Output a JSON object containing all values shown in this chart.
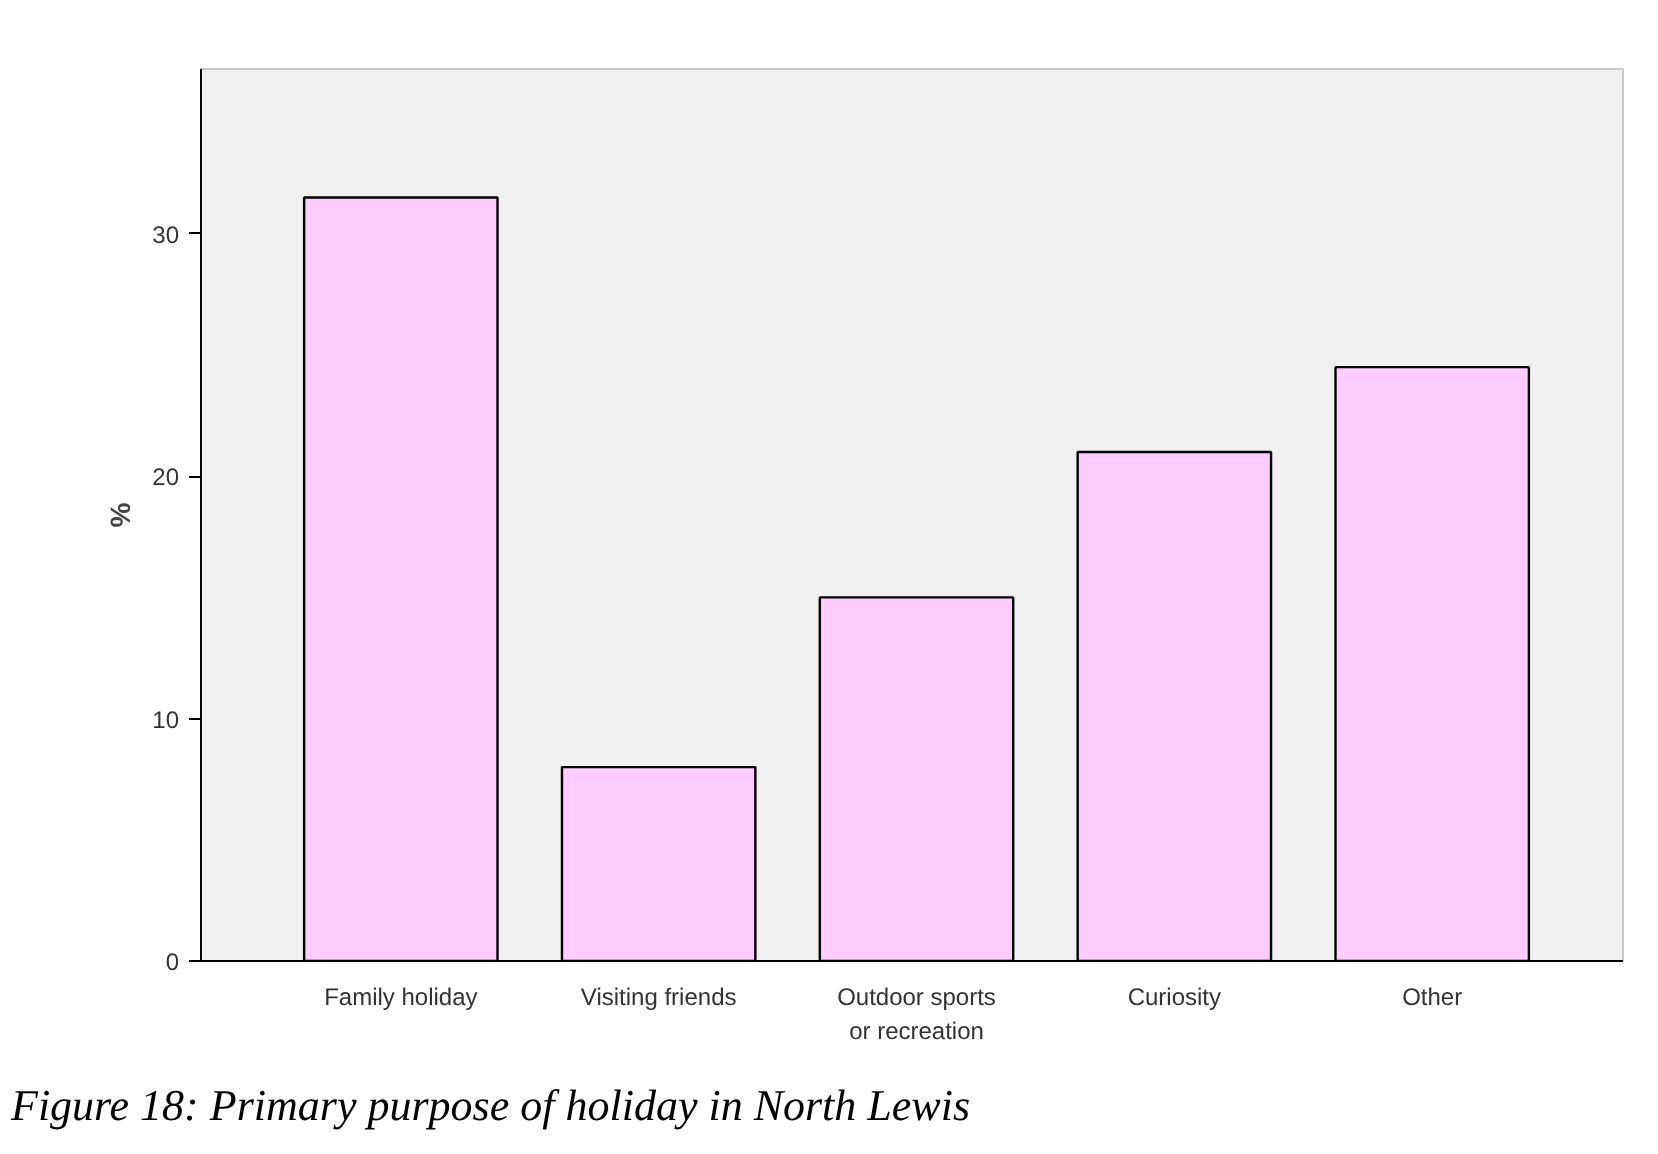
{
  "chart_data": {
    "type": "bar",
    "ylabel": "%",
    "categories": [
      "Family holiday",
      "Visiting friends",
      "Outdoor sports or recreation",
      "Curiosity",
      "Other"
    ],
    "values": [
      31.5,
      8.0,
      15.0,
      21.0,
      24.5
    ],
    "color": "#ffccff",
    "ylim": [
      0,
      36.8
    ],
    "yticks": [
      0,
      10,
      20,
      30
    ],
    "grid": false,
    "annotations": [
      "Figure 18: Primary purpose of holiday in North Lewis"
    ]
  }
}
